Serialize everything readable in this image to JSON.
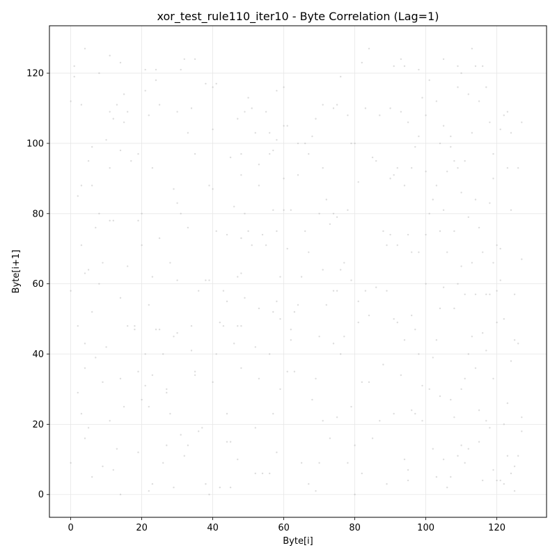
{
  "chart_data": {
    "type": "scatter",
    "title": "xor_test_rule110_iter10 - Byte Correlation (Lag=1)",
    "xlabel": "Byte[i]",
    "ylabel": "Byte[i+1]",
    "xlim": [
      -6,
      134
    ],
    "ylim": [
      -6.5,
      133.5
    ],
    "xticks": [
      0,
      20,
      40,
      60,
      80,
      100,
      120
    ],
    "yticks": [
      0,
      20,
      40,
      60,
      80,
      100,
      120
    ],
    "grid": true,
    "point_color": "#9a9a9a",
    "points": [
      [
        0,
        112
      ],
      [
        0,
        58
      ],
      [
        0,
        9
      ],
      [
        1,
        122
      ],
      [
        1,
        119
      ],
      [
        2,
        85
      ],
      [
        2,
        48
      ],
      [
        2,
        29
      ],
      [
        3,
        111
      ],
      [
        3,
        88
      ],
      [
        3,
        71
      ],
      [
        3,
        23
      ],
      [
        4,
        127
      ],
      [
        4,
        63
      ],
      [
        4,
        43
      ],
      [
        4,
        16
      ],
      [
        4,
        36
      ],
      [
        5,
        95
      ],
      [
        5,
        64
      ],
      [
        5,
        19
      ],
      [
        6,
        99
      ],
      [
        6,
        88
      ],
      [
        6,
        52
      ],
      [
        6,
        5
      ],
      [
        7,
        76
      ],
      [
        7,
        39
      ],
      [
        8,
        120
      ],
      [
        8,
        80
      ],
      [
        8,
        60
      ],
      [
        9,
        66
      ],
      [
        9,
        32
      ],
      [
        9,
        8
      ],
      [
        10,
        101
      ],
      [
        10,
        42
      ],
      [
        11,
        125
      ],
      [
        11,
        109
      ],
      [
        11,
        93
      ],
      [
        11,
        78
      ],
      [
        11,
        21
      ],
      [
        12,
        107
      ],
      [
        12,
        78
      ],
      [
        12,
        7
      ],
      [
        13,
        111
      ],
      [
        13,
        13
      ],
      [
        14,
        123
      ],
      [
        14,
        98
      ],
      [
        14,
        56
      ],
      [
        14,
        33
      ],
      [
        14,
        0
      ],
      [
        15,
        114
      ],
      [
        15,
        106
      ],
      [
        15,
        25
      ],
      [
        16,
        109
      ],
      [
        16,
        65
      ],
      [
        16,
        48
      ],
      [
        17,
        95
      ],
      [
        18,
        48
      ],
      [
        18,
        47
      ],
      [
        19,
        97
      ],
      [
        19,
        78
      ],
      [
        19,
        35
      ],
      [
        19,
        12
      ],
      [
        20,
        80
      ],
      [
        20,
        71
      ],
      [
        20,
        27
      ],
      [
        21,
        121
      ],
      [
        21,
        115
      ],
      [
        21,
        40
      ],
      [
        21,
        31
      ],
      [
        22,
        108
      ],
      [
        22,
        54
      ],
      [
        22,
        25
      ],
      [
        22,
        1
      ],
      [
        23,
        93
      ],
      [
        23,
        62
      ],
      [
        23,
        34
      ],
      [
        23,
        3
      ],
      [
        24,
        121
      ],
      [
        24,
        118
      ],
      [
        24,
        47
      ],
      [
        25,
        111
      ],
      [
        25,
        73
      ],
      [
        25,
        47
      ],
      [
        26,
        40
      ],
      [
        26,
        9
      ],
      [
        27,
        30
      ],
      [
        27,
        29
      ],
      [
        27,
        14
      ],
      [
        28,
        66
      ],
      [
        28,
        23
      ],
      [
        29,
        87
      ],
      [
        29,
        45
      ],
      [
        29,
        2
      ],
      [
        30,
        109
      ],
      [
        30,
        83
      ],
      [
        30,
        61
      ],
      [
        30,
        46
      ],
      [
        31,
        121
      ],
      [
        31,
        80
      ],
      [
        31,
        17
      ],
      [
        32,
        124
      ],
      [
        32,
        11
      ],
      [
        33,
        103
      ],
      [
        33,
        76
      ],
      [
        33,
        14
      ],
      [
        34,
        110
      ],
      [
        34,
        48
      ],
      [
        34,
        41
      ],
      [
        35,
        124
      ],
      [
        35,
        97
      ],
      [
        35,
        35
      ],
      [
        35,
        34
      ],
      [
        36,
        58
      ],
      [
        36,
        18
      ],
      [
        37,
        19
      ],
      [
        38,
        117
      ],
      [
        38,
        61
      ],
      [
        38,
        3
      ],
      [
        39,
        88
      ],
      [
        39,
        61
      ],
      [
        39,
        0
      ],
      [
        40,
        116
      ],
      [
        40,
        104
      ],
      [
        40,
        87
      ],
      [
        40,
        32
      ],
      [
        41,
        117
      ],
      [
        41,
        75
      ],
      [
        41,
        40
      ],
      [
        42,
        49
      ],
      [
        42,
        2
      ],
      [
        43,
        58
      ],
      [
        43,
        48
      ],
      [
        44,
        74
      ],
      [
        44,
        55
      ],
      [
        44,
        23
      ],
      [
        44,
        15
      ],
      [
        45,
        96
      ],
      [
        45,
        15
      ],
      [
        45,
        2
      ],
      [
        46,
        82
      ],
      [
        46,
        43
      ],
      [
        47,
        107
      ],
      [
        47,
        62
      ],
      [
        47,
        48
      ],
      [
        47,
        10
      ],
      [
        48,
        97
      ],
      [
        48,
        91
      ],
      [
        48,
        73
      ],
      [
        48,
        63
      ],
      [
        48,
        48
      ],
      [
        48,
        36
      ],
      [
        49,
        109
      ],
      [
        49,
        80
      ],
      [
        49,
        56
      ],
      [
        50,
        113
      ],
      [
        50,
        75
      ],
      [
        51,
        110
      ],
      [
        51,
        71
      ],
      [
        52,
        103
      ],
      [
        52,
        42
      ],
      [
        52,
        19
      ],
      [
        52,
        6
      ],
      [
        53,
        94
      ],
      [
        53,
        88
      ],
      [
        53,
        53
      ],
      [
        53,
        33
      ],
      [
        54,
        74
      ],
      [
        54,
        6
      ],
      [
        55,
        109
      ],
      [
        55,
        71
      ],
      [
        56,
        103
      ],
      [
        56,
        97
      ],
      [
        56,
        40
      ],
      [
        56,
        6
      ],
      [
        57,
        98
      ],
      [
        57,
        81
      ],
      [
        57,
        52
      ],
      [
        57,
        23
      ],
      [
        58,
        115
      ],
      [
        58,
        101
      ],
      [
        58,
        75
      ],
      [
        58,
        55
      ],
      [
        58,
        12
      ],
      [
        59,
        62
      ],
      [
        59,
        50
      ],
      [
        59,
        30
      ],
      [
        60,
        116
      ],
      [
        60,
        105
      ],
      [
        60,
        90
      ],
      [
        60,
        81
      ],
      [
        61,
        105
      ],
      [
        61,
        70
      ],
      [
        61,
        35
      ],
      [
        62,
        81
      ],
      [
        62,
        47
      ],
      [
        62,
        44
      ],
      [
        63,
        52
      ],
      [
        63,
        35
      ],
      [
        64,
        100
      ],
      [
        64,
        54
      ],
      [
        64,
        91
      ],
      [
        65,
        62
      ],
      [
        65,
        9
      ],
      [
        66,
        100
      ],
      [
        66,
        75
      ],
      [
        67,
        97
      ],
      [
        67,
        69
      ],
      [
        67,
        3
      ],
      [
        68,
        102
      ],
      [
        68,
        27
      ],
      [
        69,
        107
      ],
      [
        69,
        33
      ],
      [
        69,
        1
      ],
      [
        70,
        80
      ],
      [
        70,
        45
      ],
      [
        70,
        9
      ],
      [
        71,
        111
      ],
      [
        71,
        93
      ],
      [
        71,
        64
      ],
      [
        71,
        21
      ],
      [
        72,
        84
      ],
      [
        72,
        54
      ],
      [
        73,
        77
      ],
      [
        73,
        16
      ],
      [
        74,
        110
      ],
      [
        74,
        80
      ],
      [
        74,
        58
      ],
      [
        74,
        43
      ],
      [
        75,
        111
      ],
      [
        75,
        79
      ],
      [
        75,
        58
      ],
      [
        75,
        22
      ],
      [
        76,
        119
      ],
      [
        76,
        64
      ],
      [
        76,
        40
      ],
      [
        77,
        66
      ],
      [
        77,
        45
      ],
      [
        78,
        108
      ],
      [
        78,
        81
      ],
      [
        78,
        9
      ],
      [
        79,
        100
      ],
      [
        79,
        61
      ],
      [
        79,
        25
      ],
      [
        80,
        100
      ],
      [
        80,
        14
      ],
      [
        80,
        0
      ],
      [
        81,
        89
      ],
      [
        81,
        55
      ],
      [
        81,
        49
      ],
      [
        82,
        123
      ],
      [
        82,
        32
      ],
      [
        82,
        6
      ],
      [
        83,
        110
      ],
      [
        83,
        58
      ],
      [
        84,
        127
      ],
      [
        84,
        51
      ],
      [
        84,
        32
      ],
      [
        85,
        96
      ],
      [
        85,
        16
      ],
      [
        86,
        95
      ],
      [
        86,
        59
      ],
      [
        87,
        108
      ],
      [
        87,
        21
      ],
      [
        88,
        75
      ],
      [
        88,
        37
      ],
      [
        89,
        71
      ],
      [
        89,
        58
      ],
      [
        89,
        3
      ],
      [
        90,
        110
      ],
      [
        90,
        90
      ],
      [
        90,
        74
      ],
      [
        91,
        122
      ],
      [
        91,
        91
      ],
      [
        91,
        50
      ],
      [
        91,
        23
      ],
      [
        92,
        93
      ],
      [
        92,
        71
      ],
      [
        92,
        49
      ],
      [
        93,
        124
      ],
      [
        93,
        109
      ],
      [
        93,
        34
      ],
      [
        94,
        122
      ],
      [
        94,
        88
      ],
      [
        94,
        44
      ],
      [
        94,
        10
      ],
      [
        95,
        106
      ],
      [
        95,
        74
      ],
      [
        95,
        7
      ],
      [
        95,
        4
      ],
      [
        96,
        93
      ],
      [
        96,
        69
      ],
      [
        96,
        51
      ],
      [
        96,
        24
      ],
      [
        97,
        99
      ],
      [
        97,
        47
      ],
      [
        97,
        23
      ],
      [
        98,
        121
      ],
      [
        98,
        102
      ],
      [
        98,
        69
      ],
      [
        98,
        40
      ],
      [
        99,
        113
      ],
      [
        99,
        31
      ],
      [
        99,
        21
      ],
      [
        100,
        108
      ],
      [
        100,
        92
      ],
      [
        100,
        74
      ],
      [
        100,
        60
      ],
      [
        101,
        118
      ],
      [
        101,
        80
      ],
      [
        101,
        30
      ],
      [
        102,
        84
      ],
      [
        102,
        39
      ],
      [
        102,
        13
      ],
      [
        103,
        112
      ],
      [
        103,
        88
      ],
      [
        103,
        44
      ],
      [
        103,
        5
      ],
      [
        104,
        100
      ],
      [
        104,
        75
      ],
      [
        104,
        53
      ],
      [
        104,
        28
      ],
      [
        105,
        124
      ],
      [
        105,
        105
      ],
      [
        105,
        81
      ],
      [
        105,
        59
      ],
      [
        105,
        10
      ],
      [
        106,
        92
      ],
      [
        106,
        69
      ],
      [
        106,
        2
      ],
      [
        107,
        102
      ],
      [
        107,
        99
      ],
      [
        107,
        27
      ],
      [
        107,
        5
      ],
      [
        108,
        95
      ],
      [
        108,
        75
      ],
      [
        108,
        53
      ],
      [
        108,
        22
      ],
      [
        109,
        122
      ],
      [
        109,
        116
      ],
      [
        109,
        93
      ],
      [
        109,
        60
      ],
      [
        109,
        11
      ],
      [
        110,
        120
      ],
      [
        110,
        86
      ],
      [
        110,
        65
      ],
      [
        110,
        30
      ],
      [
        110,
        14
      ],
      [
        111,
        95
      ],
      [
        111,
        57
      ],
      [
        111,
        33
      ],
      [
        111,
        9
      ],
      [
        112,
        114
      ],
      [
        112,
        79
      ],
      [
        112,
        40
      ],
      [
        112,
        13
      ],
      [
        113,
        127
      ],
      [
        113,
        103
      ],
      [
        113,
        66
      ],
      [
        113,
        45
      ],
      [
        114,
        122
      ],
      [
        114,
        84
      ],
      [
        114,
        57
      ],
      [
        114,
        36
      ],
      [
        115,
        112
      ],
      [
        115,
        76
      ],
      [
        115,
        24
      ],
      [
        115,
        15
      ],
      [
        116,
        122
      ],
      [
        116,
        69
      ],
      [
        116,
        46
      ],
      [
        116,
        4
      ],
      [
        117,
        116
      ],
      [
        117,
        57
      ],
      [
        117,
        41
      ],
      [
        117,
        21
      ],
      [
        118,
        106
      ],
      [
        118,
        83
      ],
      [
        118,
        57
      ],
      [
        118,
        19
      ],
      [
        119,
        97
      ],
      [
        119,
        90
      ],
      [
        119,
        66
      ],
      [
        119,
        33
      ],
      [
        119,
        7
      ],
      [
        120,
        71
      ],
      [
        120,
        58
      ],
      [
        120,
        49
      ],
      [
        120,
        4
      ],
      [
        121,
        104
      ],
      [
        121,
        70
      ],
      [
        121,
        61
      ],
      [
        121,
        4
      ],
      [
        122,
        108
      ],
      [
        122,
        50
      ],
      [
        122,
        20
      ],
      [
        122,
        3
      ],
      [
        123,
        109
      ],
      [
        123,
        93
      ],
      [
        123,
        26
      ],
      [
        123,
        11
      ],
      [
        124,
        103
      ],
      [
        124,
        81
      ],
      [
        124,
        38
      ],
      [
        124,
        6
      ],
      [
        125,
        57
      ],
      [
        125,
        44
      ],
      [
        125,
        8
      ],
      [
        125,
        1
      ],
      [
        126,
        93
      ],
      [
        126,
        43
      ],
      [
        126,
        11
      ],
      [
        127,
        106
      ],
      [
        127,
        67
      ],
      [
        127,
        22
      ],
      [
        127,
        18
      ]
    ]
  }
}
